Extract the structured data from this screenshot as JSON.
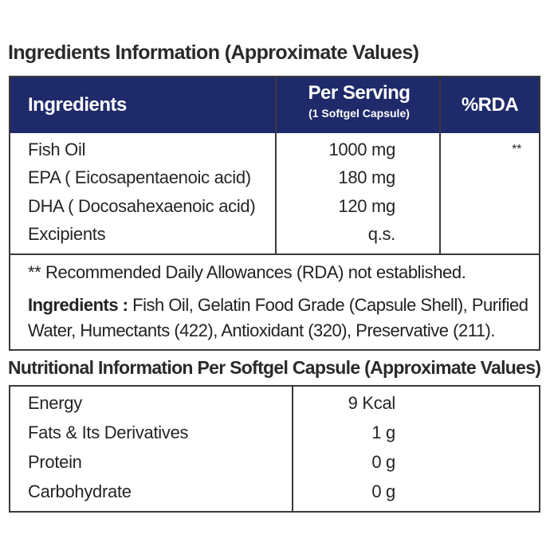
{
  "title": "Ingredients Information (Approximate Values)",
  "table1": {
    "headers": {
      "ingredients": "Ingredients",
      "per_serving": "Per Serving",
      "per_serving_sub": "(1 Softgel Capsule)",
      "rda": "%RDA"
    },
    "header_color": "#1f2a6a",
    "rows": [
      {
        "name": "Fish Oil",
        "value": "1000 mg",
        "rda": "**"
      },
      {
        "name": "EPA ( Eicosapentaenoic acid)",
        "value": "180 mg",
        "rda": ""
      },
      {
        "name": "DHA ( Docosahexaenoic acid)",
        "value": "120 mg",
        "rda": ""
      },
      {
        "name": "Excipients",
        "value": "q.s.",
        "rda": ""
      }
    ],
    "note": "** Recommended Daily Allowances (RDA) not established.",
    "ingredients_label": "Ingredients :",
    "ingredients_text": "Fish Oil, Gelatin Food Grade (Capsule Shell), Purified Water, Humectants (422), Antioxidant (320), Preservative (211)."
  },
  "title2": "Nutritional Information Per Softgel Capsule (Approximate Values)",
  "table2": {
    "rows": [
      {
        "name": "Energy",
        "value": "9 Kcal"
      },
      {
        "name": "Fats & Its Derivatives",
        "value": "1 g"
      },
      {
        "name": "Protein",
        "value": "0 g"
      },
      {
        "name": "Carbohydrate",
        "value": "0 g"
      }
    ]
  }
}
